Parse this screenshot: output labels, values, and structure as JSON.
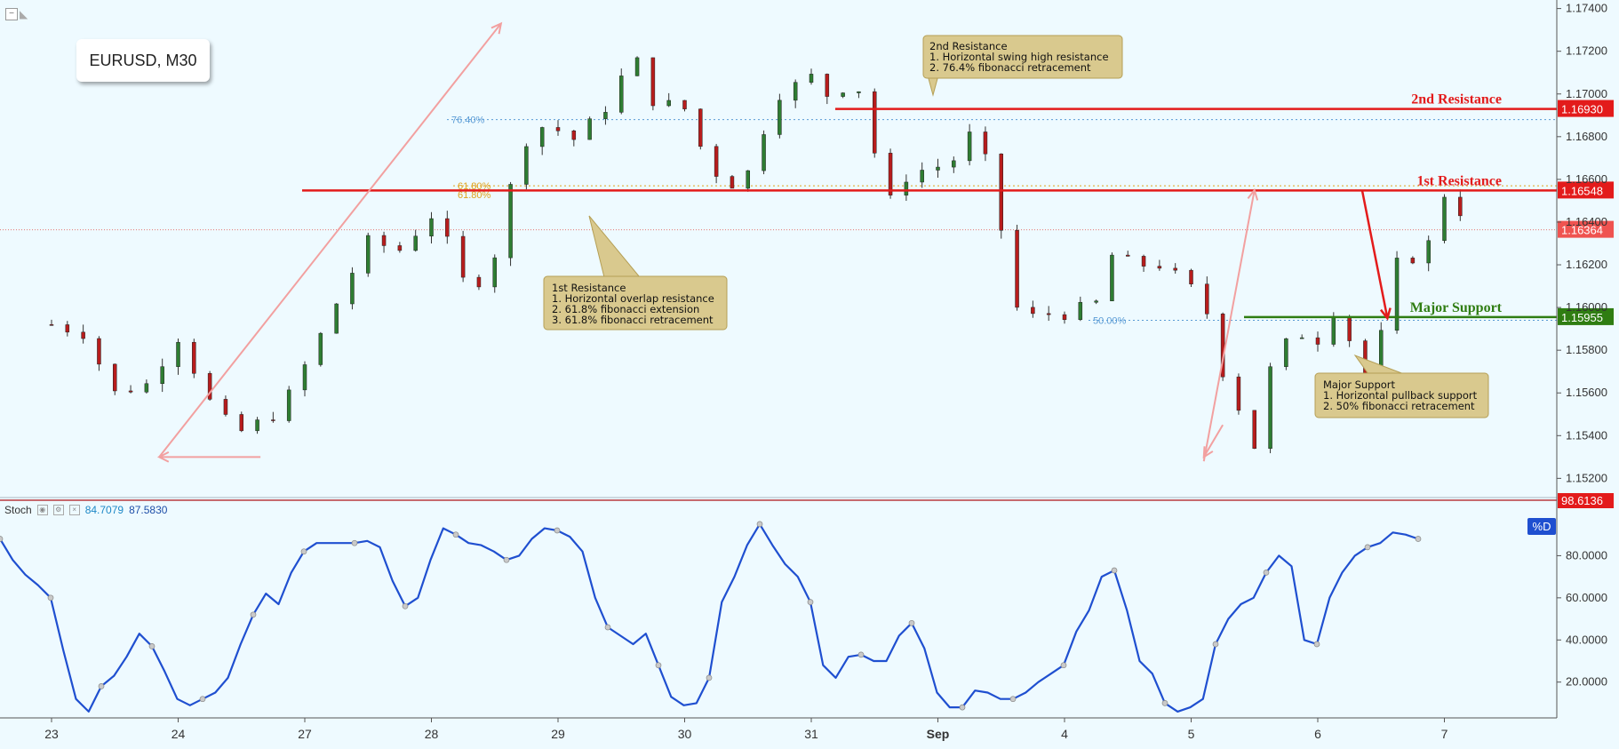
{
  "header": {
    "symbol_title": "EURUSD, M30"
  },
  "callouts": {
    "second_resistance": {
      "title": "2nd Resistance",
      "lines": [
        "1. Horizontal swing high resistance",
        "2. 76.4% fibonacci retracement"
      ]
    },
    "first_resistance": {
      "title": "1st Resistance",
      "lines": [
        "1. Horizontal overlap resistance",
        "2. 61.8% fibonacci extension",
        "3. 61.8% fibonacci retracement"
      ]
    },
    "major_support": {
      "title": "Major Support",
      "lines": [
        "1. Horizontal pullback support",
        "2. 50% fibonacci retracement"
      ]
    }
  },
  "indicator": {
    "name": "Stoch",
    "k_value": "84.7079",
    "d_value": "87.5830",
    "series_tag": "%D"
  },
  "colors": {
    "resistance": "#e31b1b",
    "support": "#2f7d12",
    "stoch_line": "#1f4fd0",
    "arrow": "#f2a0a0",
    "candle_up": "#2e7d32",
    "candle_down": "#b71c1c",
    "callout_bg": "#d9c98e"
  },
  "chart_data": [
    {
      "type": "candlestick",
      "title": "EURUSD, M30",
      "x_ticks": [
        "23",
        "24",
        "27",
        "28",
        "29",
        "30",
        "31",
        "Sep",
        "4",
        "5",
        "6",
        "7"
      ],
      "y_ticks": [
        "1.15200",
        "1.15400",
        "1.15600",
        "1.15800",
        "1.16000",
        "1.16200",
        "1.16400",
        "1.16600",
        "1.16800",
        "1.17000",
        "1.17200",
        "1.17400"
      ],
      "ylim": [
        1.1511,
        1.1744
      ],
      "current_price": "1.16364",
      "levels": [
        {
          "name": "2nd Resistance",
          "value": "1.16930"
        },
        {
          "name": "1st Resistance",
          "value": "1.16548"
        },
        {
          "name": "Major Support",
          "value": "1.15955"
        }
      ],
      "fib_labels": [
        "76.40%",
        "61.80%",
        "61.80%",
        "50.00%"
      ],
      "fib_values": [
        1.1688,
        1.1657,
        1.1655,
        1.1594
      ],
      "price_path": [
        [
          0,
          1.1592
        ],
        [
          0.25,
          1.1588
        ],
        [
          0.5,
          1.156
        ],
        [
          0.75,
          1.1564
        ],
        [
          1.0,
          1.1586
        ],
        [
          1.3,
          1.155
        ],
        [
          1.5,
          1.1542
        ],
        [
          1.8,
          1.1551
        ],
        [
          2.05,
          1.1578
        ],
        [
          2.3,
          1.1608
        ],
        [
          2.5,
          1.1631
        ],
        [
          2.75,
          1.1627
        ],
        [
          3.0,
          1.1643
        ],
        [
          3.15,
          1.1628
        ],
        [
          3.3,
          1.1605
        ],
        [
          3.5,
          1.1625
        ],
        [
          3.7,
          1.1675
        ],
        [
          3.85,
          1.1685
        ],
        [
          4.0,
          1.1683
        ],
        [
          4.15,
          1.1678
        ],
        [
          4.3,
          1.169
        ],
        [
          4.45,
          1.1697
        ],
        [
          4.55,
          1.1718
        ],
        [
          4.65,
          1.1714
        ],
        [
          4.75,
          1.1697
        ],
        [
          5.0,
          1.1693
        ],
        [
          5.2,
          1.1665
        ],
        [
          5.45,
          1.1655
        ],
        [
          5.6,
          1.168
        ],
        [
          5.75,
          1.17
        ],
        [
          6.0,
          1.1708
        ],
        [
          6.15,
          1.1698
        ],
        [
          6.35,
          1.1708
        ],
        [
          6.45,
          1.1685
        ],
        [
          6.6,
          1.1648
        ],
        [
          6.75,
          1.1661
        ],
        [
          6.9,
          1.1665
        ],
        [
          7.1,
          1.1667
        ],
        [
          7.3,
          1.1685
        ],
        [
          7.45,
          1.1653
        ],
        [
          7.55,
          1.162
        ],
        [
          7.65,
          1.1593
        ],
        [
          7.8,
          1.1597
        ],
        [
          8.0,
          1.1597
        ],
        [
          8.25,
          1.1602
        ],
        [
          8.35,
          1.1625
        ],
        [
          8.55,
          1.162
        ],
        [
          8.75,
          1.162
        ],
        [
          8.95,
          1.1612
        ],
        [
          9.1,
          1.1603
        ],
        [
          9.25,
          1.157
        ],
        [
          9.4,
          1.155
        ],
        [
          9.5,
          1.1535
        ],
        [
          9.65,
          1.1578
        ],
        [
          9.85,
          1.1588
        ],
        [
          10.0,
          1.1585
        ],
        [
          10.1,
          1.16
        ],
        [
          10.2,
          1.1594
        ],
        [
          10.35,
          1.1568
        ],
        [
          10.45,
          1.157
        ],
        [
          10.5,
          1.1587
        ],
        [
          10.55,
          1.161
        ],
        [
          10.65,
          1.1624
        ],
        [
          10.8,
          1.1623
        ],
        [
          10.95,
          1.1637
        ],
        [
          11.0,
          1.1653
        ],
        [
          11.1,
          1.165
        ],
        [
          11.15,
          1.164
        ]
      ]
    },
    {
      "type": "line",
      "name": "Stoch",
      "ylim": [
        0,
        100
      ],
      "y_ticks": [
        "20.0000",
        "40.0000",
        "60.0000",
        "80.0000"
      ],
      "k_value": "84.7079",
      "d_value": "87.5830",
      "top_level": "98.6136",
      "series": [
        {
          "name": "%D",
          "x": [
            0,
            0.1,
            0.2,
            0.3,
            0.4,
            0.5,
            0.6,
            0.7,
            0.8,
            0.9,
            1.0,
            1.1,
            1.2,
            1.3,
            1.4,
            1.5,
            1.6,
            1.7,
            1.8,
            1.9,
            2.0,
            2.1,
            2.2,
            2.3,
            2.4,
            2.5,
            2.6,
            2.7,
            2.8,
            2.9,
            3.0,
            3.1,
            3.2,
            3.3,
            3.4,
            3.5,
            3.6,
            3.7,
            3.8,
            3.9,
            4.0,
            4.1,
            4.2,
            4.3,
            4.4,
            4.5,
            4.6,
            4.7,
            4.8,
            4.9,
            5.0,
            5.1,
            5.2,
            5.3,
            5.4,
            5.5,
            5.6,
            5.7,
            5.8,
            5.9,
            6.0,
            6.1,
            6.2,
            6.3,
            6.4,
            6.5,
            6.6,
            6.7,
            6.8,
            6.9,
            7.0,
            7.1,
            7.2,
            7.3,
            7.4,
            7.5,
            7.6,
            7.7,
            7.8,
            7.9,
            8.0,
            8.1,
            8.2,
            8.3,
            8.4,
            8.5,
            8.6,
            8.7,
            8.8,
            8.9,
            9.0,
            9.1,
            9.2,
            9.3,
            9.4,
            9.5,
            9.6,
            9.7,
            9.8,
            9.9,
            10.0,
            10.1,
            10.2,
            10.3,
            10.4,
            10.5,
            10.6,
            10.7,
            10.8,
            10.9,
            11.0,
            11.1,
            11.2
          ],
          "values": [
            88,
            78,
            71,
            66,
            60,
            35,
            12,
            6,
            18,
            23,
            32,
            43,
            37,
            25,
            12,
            9,
            12,
            15,
            22,
            38,
            52,
            62,
            57,
            72,
            82,
            86,
            86,
            86,
            86,
            87,
            84,
            68,
            56,
            60,
            78,
            93,
            90,
            86,
            85,
            82,
            78,
            80,
            88,
            93,
            92,
            89,
            82,
            60,
            46,
            42,
            38,
            43,
            28,
            13,
            9,
            10,
            22,
            58,
            70,
            85,
            95,
            85,
            76,
            70,
            58,
            28,
            22,
            32,
            33,
            30,
            30,
            42,
            48,
            36,
            15,
            8,
            8,
            16,
            15,
            12,
            12,
            15,
            20,
            24,
            28,
            44,
            54,
            70,
            73,
            54,
            30,
            24,
            10,
            6,
            8,
            12,
            38,
            50,
            57,
            60,
            72,
            80,
            75,
            40,
            38,
            60,
            72,
            80,
            84,
            86,
            91,
            90,
            88
          ]
        }
      ]
    }
  ]
}
